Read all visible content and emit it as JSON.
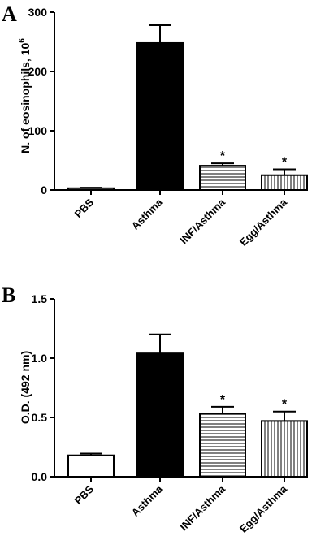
{
  "chart_data": [
    {
      "type": "bar",
      "panel": "A",
      "title": "",
      "xlabel": "",
      "ylabel": "N. of eosinophils, 10",
      "ylabel_superscript": "6",
      "ylim": [
        0,
        300
      ],
      "yticks": [
        "0",
        "100",
        "200",
        "300"
      ],
      "categories": [
        "PBS",
        "Asthma",
        "INF/Asthma",
        "Egg/Asthma"
      ],
      "values": [
        3,
        248,
        41,
        25
      ],
      "errors": [
        1,
        30,
        4,
        10
      ],
      "significance": [
        "",
        "",
        "*",
        "*"
      ],
      "fills": [
        "white",
        "black",
        "hlines",
        "vlines"
      ]
    },
    {
      "type": "bar",
      "panel": "B",
      "title": "",
      "xlabel": "",
      "ylabel": "O.D. (492 nm)",
      "ylim": [
        0,
        1.5
      ],
      "yticks": [
        "0.0",
        "0.5",
        "1.0",
        "1.5"
      ],
      "categories": [
        "PBS",
        "Asthma",
        "INF/Asthma",
        "Egg/Asthma"
      ],
      "values": [
        0.18,
        1.04,
        0.53,
        0.47
      ],
      "errors": [
        0.015,
        0.16,
        0.06,
        0.08
      ],
      "significance": [
        "",
        "",
        "*",
        "*"
      ],
      "fills": [
        "white",
        "black",
        "hlines",
        "vlines"
      ]
    }
  ]
}
